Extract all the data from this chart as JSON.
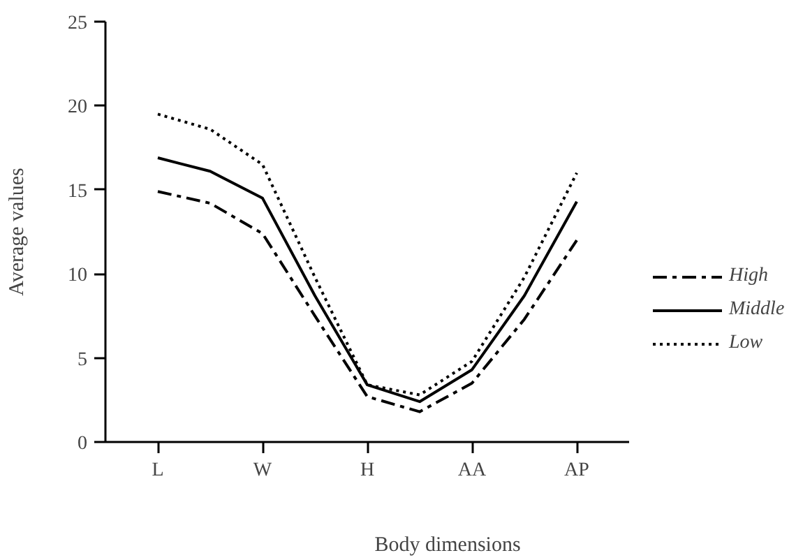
{
  "chart_data": {
    "type": "line",
    "xlabel": "Body dimensions",
    "ylabel": "Average values",
    "categories": [
      "L",
      null,
      "W",
      null,
      "H",
      null,
      "AA",
      null,
      "AP"
    ],
    "ylim": [
      0,
      25
    ],
    "yticks": [
      0,
      5,
      10,
      15,
      20,
      25
    ],
    "grid": false,
    "legend": "right",
    "marker": "none",
    "series": [
      {
        "name": "High",
        "color": "#000000",
        "line_style": "dashdot",
        "values": [
          14.9,
          14.2,
          12.4,
          7.5,
          2.7,
          1.8,
          3.5,
          7.3,
          12.0
        ]
      },
      {
        "name": "Middle",
        "color": "#000000",
        "line_style": "solid",
        "values": [
          16.9,
          16.1,
          14.5,
          8.7,
          3.4,
          2.4,
          4.3,
          8.7,
          14.3
        ]
      },
      {
        "name": "Low",
        "color": "#000000",
        "line_style": "dotted",
        "values": [
          19.5,
          18.6,
          16.5,
          9.8,
          3.4,
          2.8,
          4.8,
          9.8,
          16.0
        ]
      }
    ]
  }
}
